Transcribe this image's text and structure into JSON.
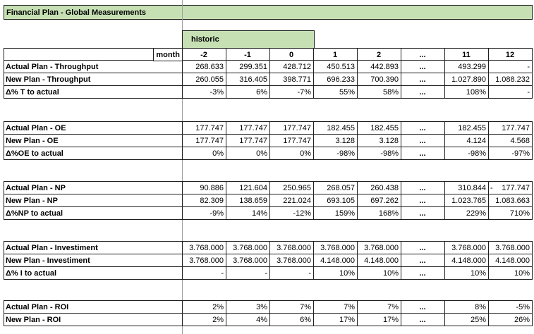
{
  "title": "Financial Plan - Global Measurements",
  "colors": {
    "cell_green": "#c6e0b4",
    "historic_fill": "#efefef",
    "border": "#1f1f1f",
    "gridline": "#9e9e9e"
  },
  "header": {
    "group_label": "historic",
    "month_label": "month",
    "columns": [
      "-2",
      "-1",
      "0",
      "1",
      "2",
      "...",
      "11",
      "12"
    ]
  },
  "blocks": [
    {
      "name": "throughput",
      "rows": [
        {
          "label": "Actual Plan - Throughput",
          "cells": [
            "268.633",
            "299.351",
            "428.712",
            "450.513",
            "442.893",
            "...",
            "493.299",
            "-"
          ]
        },
        {
          "label": "New Plan - Throughput",
          "cells": [
            "260.055",
            "316.405",
            "398.771",
            "696.233",
            "700.390",
            "...",
            "1.027.890",
            "1.088.232"
          ]
        },
        {
          "label": "Δ% T to actual",
          "cells": [
            "-3%",
            "6%",
            "-7%",
            "55%",
            "58%",
            "...",
            "108%",
            "-"
          ]
        }
      ]
    },
    {
      "name": "oe",
      "rows": [
        {
          "label": "Actual Plan - OE",
          "cells": [
            "177.747",
            "177.747",
            "177.747",
            "182.455",
            "182.455",
            "...",
            "182.455",
            "177.747"
          ]
        },
        {
          "label": "New Plan - OE",
          "cells": [
            "177.747",
            "177.747",
            "177.747",
            "3.128",
            "3.128",
            "...",
            "4.124",
            "4.568"
          ]
        },
        {
          "label": "Δ%OE to actual",
          "cells": [
            "0%",
            "0%",
            "0%",
            "-98%",
            "-98%",
            "...",
            "-98%",
            "-97%"
          ]
        }
      ]
    },
    {
      "name": "np",
      "rows": [
        {
          "label": "Actual Plan - NP",
          "cells": [
            "90.886",
            "121.604",
            "250.965",
            "268.057",
            "260.438",
            "...",
            "310.844",
            "- 177.747"
          ]
        },
        {
          "label": "New Plan - NP",
          "cells": [
            "82.309",
            "138.659",
            "221.024",
            "693.105",
            "697.262",
            "...",
            "1.023.765",
            "1.083.663"
          ]
        },
        {
          "label": "Δ%NP to actual",
          "cells": [
            "-9%",
            "14%",
            "-12%",
            "159%",
            "168%",
            "...",
            "229%",
            "710%"
          ]
        }
      ]
    },
    {
      "name": "investiment",
      "rows": [
        {
          "label": "Actual Plan - Investiment",
          "cells": [
            "3.768.000",
            "3.768.000",
            "3.768.000",
            "3.768.000",
            "3.768.000",
            "...",
            "3.768.000",
            "3.768.000"
          ]
        },
        {
          "label": "New Plan - Investiment",
          "cells": [
            "3.768.000",
            "3.768.000",
            "3.768.000",
            "4.148.000",
            "4.148.000",
            "...",
            "4.148.000",
            "4.148.000"
          ]
        },
        {
          "label": "Δ% I to actual",
          "cells": [
            "-",
            "-",
            "-",
            "10%",
            "10%",
            "...",
            "10%",
            "10%"
          ]
        }
      ]
    },
    {
      "name": "roi",
      "rows": [
        {
          "label": "Actual Plan - ROI",
          "cells": [
            "2%",
            "3%",
            "7%",
            "7%",
            "7%",
            "...",
            "8%",
            "-5%"
          ]
        },
        {
          "label": "New Plan - ROI",
          "cells": [
            "2%",
            "4%",
            "6%",
            "17%",
            "17%",
            "...",
            "25%",
            "26%"
          ]
        }
      ]
    }
  ]
}
